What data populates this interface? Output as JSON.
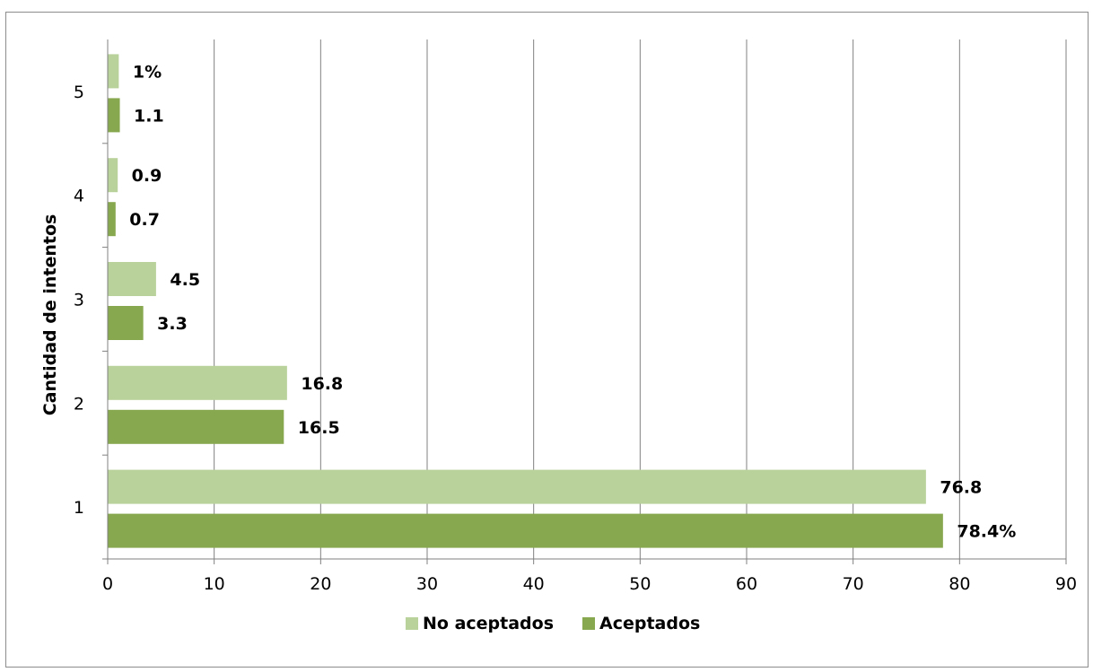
{
  "chart_data": {
    "type": "bar",
    "orientation": "horizontal",
    "categories": [
      "1",
      "2",
      "3",
      "4",
      "5"
    ],
    "series": [
      {
        "name": "No aceptados",
        "values": [
          76.8,
          16.8,
          4.5,
          0.9,
          1
        ],
        "data_labels": [
          "76.8",
          "16.8",
          "4.5",
          "0.9",
          "1%"
        ],
        "color": "#b9d19a"
      },
      {
        "name": "Aceptados",
        "values": [
          78.4,
          16.5,
          3.3,
          0.7,
          1.1
        ],
        "data_labels": [
          "78.4%",
          "16.5",
          "3.3",
          "0.7",
          "1.1"
        ],
        "color": "#88a84f"
      }
    ],
    "xlim": [
      0,
      90
    ],
    "x_ticks": [
      "0",
      "10",
      "20",
      "30",
      "40",
      "50",
      "60",
      "70",
      "80",
      "90"
    ],
    "xlabel": "",
    "ylabel": "Cantidad de intentos",
    "grid": "vertical",
    "legend_position": "bottom",
    "gridline_color": "#808080",
    "axis_color": "#808080"
  }
}
